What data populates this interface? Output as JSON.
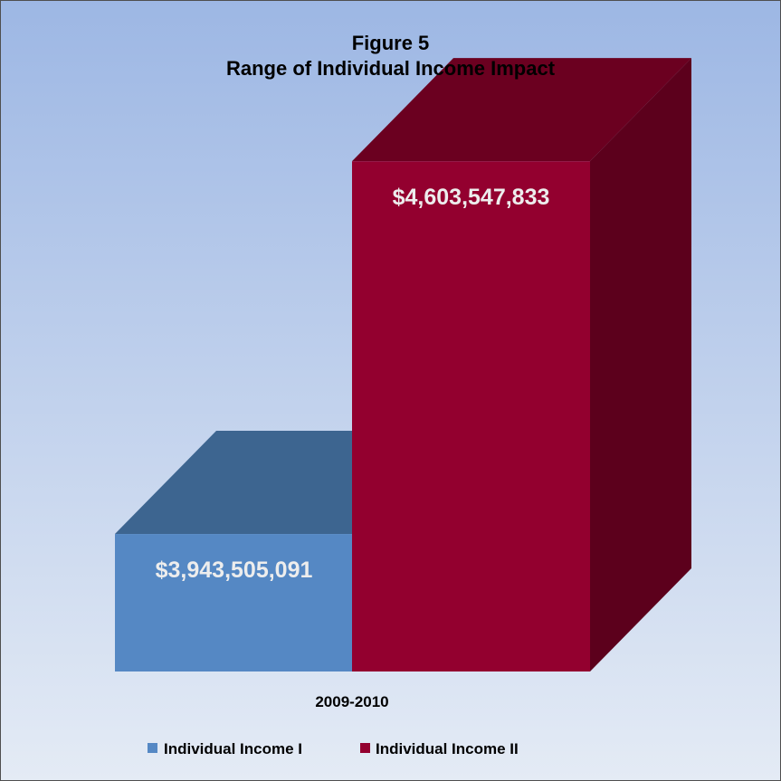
{
  "chart_data": {
    "type": "bar",
    "title_lines": [
      "Figure 5",
      "Range of Individual Income Impact"
    ],
    "categories": [
      "2009-2010"
    ],
    "series": [
      {
        "name": "Individual Income I",
        "values": [
          3943505091
        ],
        "label": "$3,943,505,091"
      },
      {
        "name": "Individual Income II",
        "values": [
          4603547833
        ],
        "label": "$4,603,547,833"
      }
    ],
    "ylim": [
      3700000000,
      4700000000
    ],
    "grid": false,
    "three_d": true,
    "legend_position": "bottom",
    "colors": {
      "series_front": [
        "#5588C4",
        "#93002F"
      ],
      "series_top": [
        "#3D6590",
        "#6B0020"
      ],
      "series_side": [
        "#3A5F88",
        "#5C001C"
      ],
      "label_text": "#EDEDED",
      "axis_text": "#000000",
      "background_top": "#9DB7E4",
      "background_bottom": "#E4EBF5",
      "border": "#4F4F4F"
    }
  }
}
